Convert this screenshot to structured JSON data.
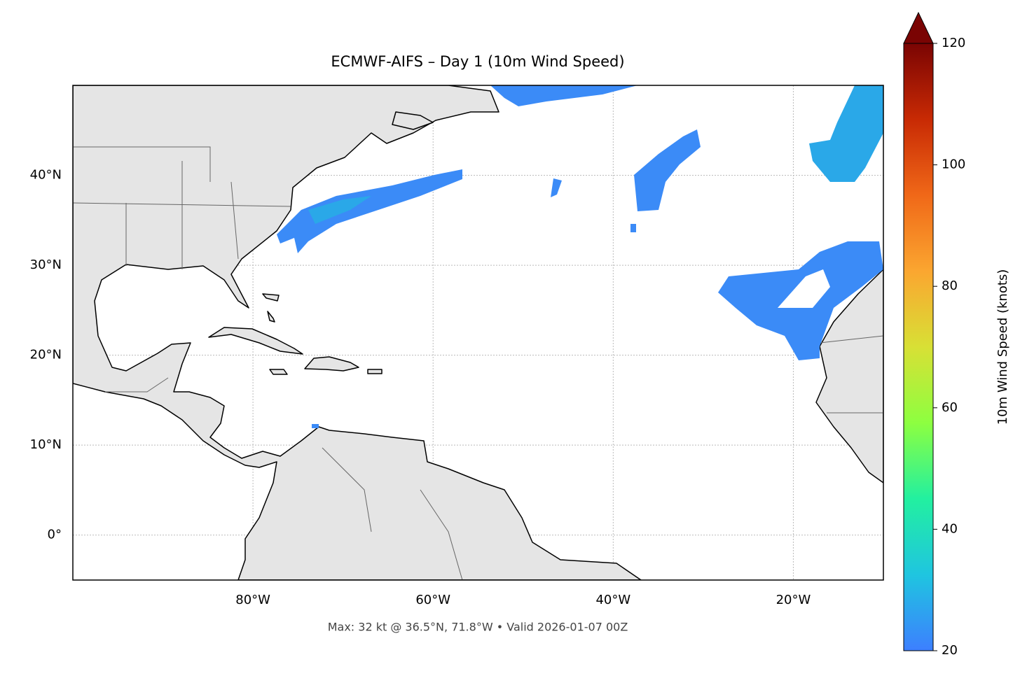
{
  "map": {
    "title": "ECMWF-AIFS – Day 1 (10m Wind Speed)",
    "xlim": [
      -100,
      -10
    ],
    "ylim": [
      -5,
      50
    ],
    "xticks": [
      {
        "value": -80,
        "label": "80°W"
      },
      {
        "value": -60,
        "label": "60°W"
      },
      {
        "value": -40,
        "label": "40°W"
      },
      {
        "value": -20,
        "label": "20°W"
      }
    ],
    "yticks": [
      {
        "value": 0,
        "label": "0°"
      },
      {
        "value": 10,
        "label": "10°N"
      },
      {
        "value": 20,
        "label": "20°N"
      },
      {
        "value": 30,
        "label": "30°N"
      },
      {
        "value": 40,
        "label": "40°N"
      }
    ],
    "grid": true
  },
  "colorbar": {
    "label": "10m Wind Speed (knots)",
    "lim": [
      20,
      120
    ],
    "ticks": [
      20,
      40,
      60,
      80,
      100,
      120
    ],
    "colors": [
      "#3d7fff",
      "#1fc5e0",
      "#22f0a0",
      "#8dff40",
      "#d8e035",
      "#fba630",
      "#f06818",
      "#c82a04",
      "#7a0403"
    ]
  },
  "footer": "Max: 32 kt @ 36.5°N, 71.8°W • Valid 2026-01-07 00Z"
}
